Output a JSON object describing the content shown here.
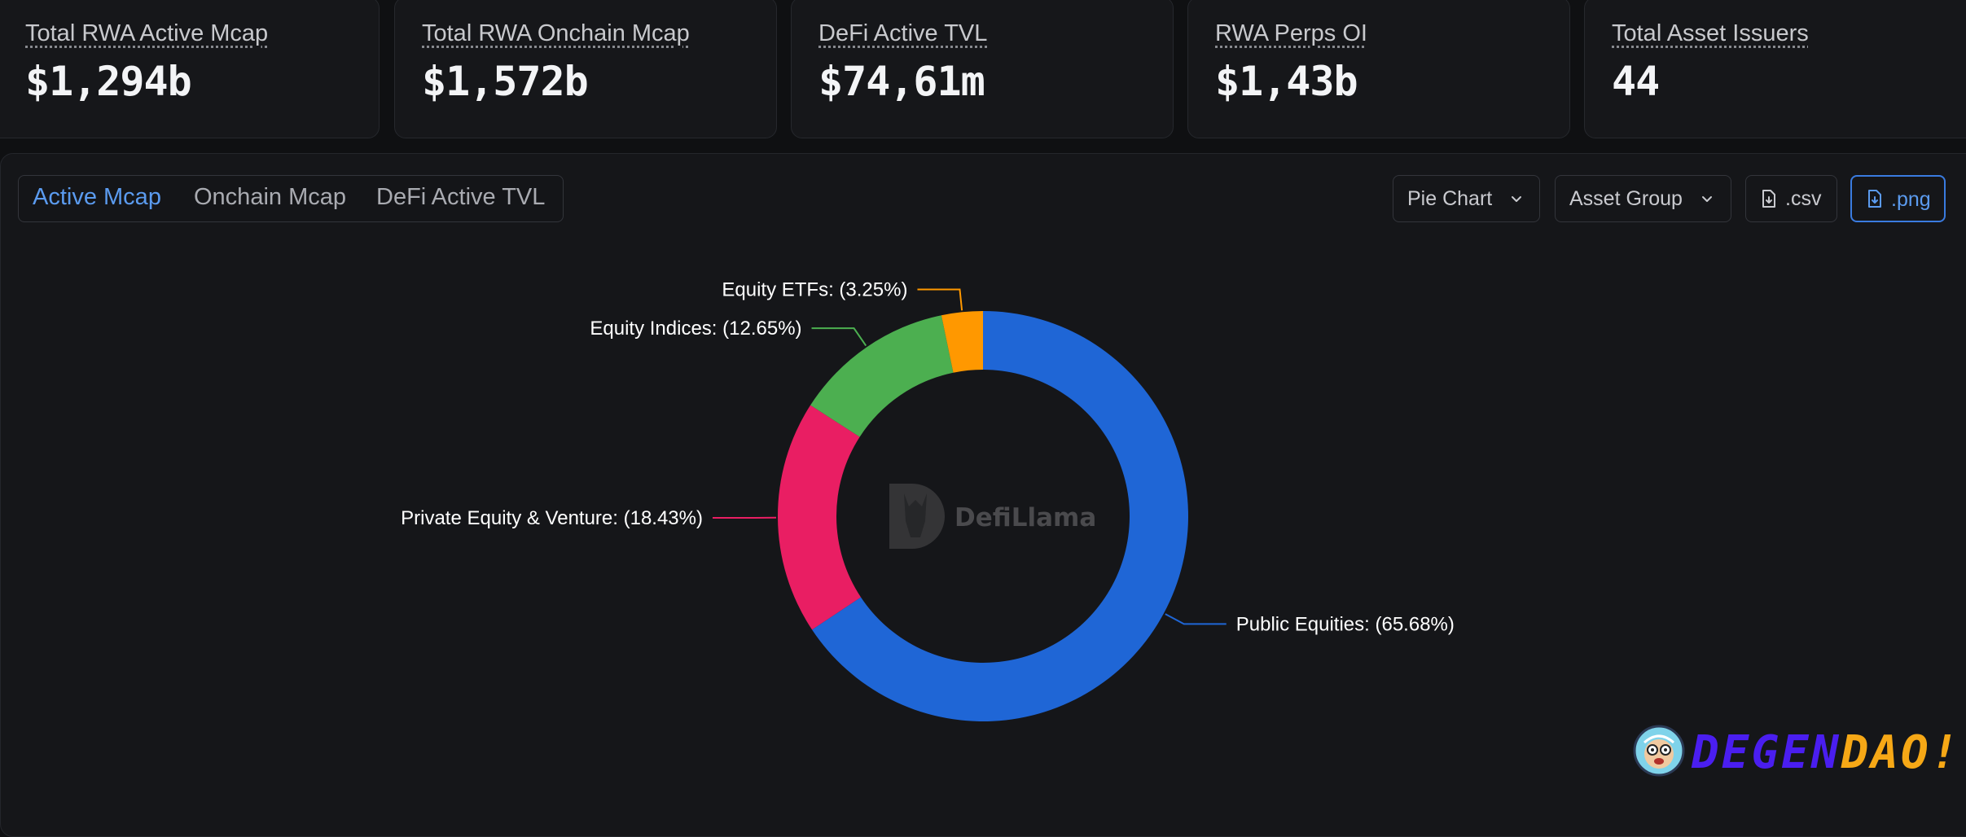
{
  "stats": [
    {
      "label": "Total RWA Active Mcap",
      "value": "$1,294b"
    },
    {
      "label": "Total RWA Onchain Mcap",
      "value": "$1,572b"
    },
    {
      "label": "DeFi Active TVL",
      "value": "$74,61m"
    },
    {
      "label": "RWA Perps OI",
      "value": "$1,43b"
    },
    {
      "label": "Total Asset Issuers",
      "value": "44"
    }
  ],
  "tabs": [
    {
      "label": "Active Mcap",
      "active": true
    },
    {
      "label": "Onchain Mcap",
      "active": false
    },
    {
      "label": "DeFi Active TVL",
      "active": false
    }
  ],
  "controls": {
    "chart_type": "Pie Chart",
    "grouping": "Asset Group",
    "csv_label": ".csv",
    "png_label": ".png"
  },
  "watermark": "DefiLlama",
  "brand": {
    "part1": "DEGEN",
    "part2": "DAO!",
    "color1": "#4a1ef0",
    "color2": "#f6a816"
  },
  "chart_data": {
    "type": "pie",
    "donut": true,
    "categories": [
      "Public Equities",
      "Private Equity & Venture",
      "Equity Indices",
      "Equity ETFs"
    ],
    "values": [
      65.68,
      18.43,
      12.65,
      3.25
    ],
    "labels": [
      "Public Equities: (65.68%)",
      "Private Equity & Venture: (18.43%)",
      "Equity Indices: (12.65%)",
      "Equity ETFs: (3.25%)"
    ],
    "colors": [
      "#1f66d6",
      "#e91e63",
      "#4caf50",
      "#ff9800"
    ]
  }
}
